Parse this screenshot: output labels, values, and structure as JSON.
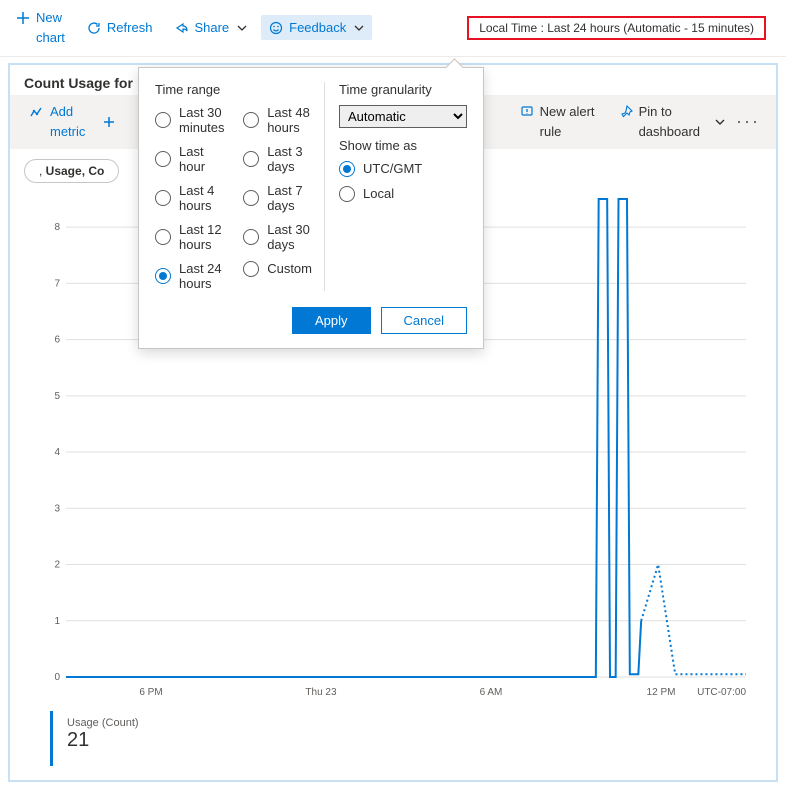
{
  "toolbar": {
    "newChart": "New chart",
    "refresh": "Refresh",
    "share": "Share",
    "feedback": "Feedback",
    "timePill": "Local Time : Last 24 hours (Automatic - 15 minutes)"
  },
  "panel": {
    "title": "Count Usage for",
    "cmd": {
      "addMetric": "Add metric",
      "newAlertRule": "New alert rule",
      "pinToDashboard": "Pin to dashboard"
    },
    "chipPrefix": ", ",
    "chipBold": "Usage, Co"
  },
  "chart": {
    "type": "line",
    "ylim": [
      0,
      8.5
    ],
    "yticks": [
      0,
      1,
      2,
      3,
      4,
      5,
      6,
      7,
      8
    ],
    "xmin": 0,
    "xmax": 24,
    "xticks": [
      {
        "pos": 3,
        "label": "6 PM"
      },
      {
        "pos": 9,
        "label": "Thu 23"
      },
      {
        "pos": 15,
        "label": "6 AM"
      },
      {
        "pos": 21,
        "label": "12 PM"
      }
    ],
    "tzLabel": "UTC-07:00",
    "gridColor": "#e1dfdd",
    "seriesColor": "#0078d4",
    "background": "#ffffff",
    "solidPoints": [
      [
        0,
        0
      ],
      [
        18.7,
        0
      ],
      [
        18.8,
        8.5
      ],
      [
        19.1,
        8.5
      ],
      [
        19.2,
        0
      ],
      [
        19.4,
        0
      ],
      [
        19.5,
        8.5
      ],
      [
        19.8,
        8.5
      ],
      [
        19.9,
        0.05
      ],
      [
        20.2,
        0.05
      ],
      [
        20.3,
        1.0
      ]
    ],
    "dottedPoints": [
      [
        20.3,
        1.0
      ],
      [
        20.9,
        2.0
      ],
      [
        21.5,
        0.05
      ],
      [
        24,
        0.05
      ]
    ]
  },
  "legend": {
    "label": "Usage (Count)",
    "value": "21"
  },
  "popover": {
    "timeRangeHead": "Time range",
    "granHead": "Time granularity",
    "showTimeHead": "Show time as",
    "rangesCol1": [
      "Last 30 minutes",
      "Last hour",
      "Last 4 hours",
      "Last 12 hours",
      "Last 24 hours"
    ],
    "rangesCol2": [
      "Last 48 hours",
      "Last 3 days",
      "Last 7 days",
      "Last 30 days",
      "Custom"
    ],
    "selectedRange": "Last 24 hours",
    "granOptions": [
      "Automatic"
    ],
    "granSelected": "Automatic",
    "showTime": [
      "UTC/GMT",
      "Local"
    ],
    "selectedShowTime": "UTC/GMT",
    "apply": "Apply",
    "cancel": "Cancel"
  }
}
